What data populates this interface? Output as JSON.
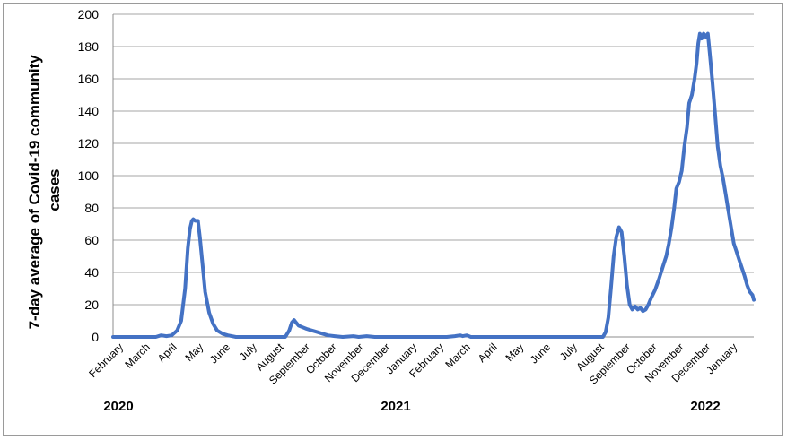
{
  "chart_data": {
    "type": "line",
    "title": "",
    "ylabel_lines": [
      "7-day average of Covid-19 community",
      "cases"
    ],
    "ylim": [
      0,
      200
    ],
    "yticks": [
      0,
      20,
      40,
      60,
      80,
      100,
      120,
      140,
      160,
      180,
      200
    ],
    "grid": true,
    "legend": "none",
    "line_color": "#4472c4",
    "month_labels": [
      "February",
      "March",
      "April",
      "May",
      "June",
      "July",
      "August",
      "September",
      "October",
      "November",
      "December",
      "January",
      "February",
      "March",
      "April",
      "May",
      "June",
      "July",
      "August",
      "September",
      "October",
      "November",
      "December",
      "January"
    ],
    "years": [
      "2020",
      "2021",
      "2022"
    ],
    "x_start_month": "2020-02",
    "points": [
      [
        0,
        0
      ],
      [
        1.6,
        0
      ],
      [
        1.8,
        1
      ],
      [
        2.0,
        0.5
      ],
      [
        2.2,
        1
      ],
      [
        2.4,
        4
      ],
      [
        2.55,
        10
      ],
      [
        2.7,
        30
      ],
      [
        2.8,
        55
      ],
      [
        2.88,
        67
      ],
      [
        2.95,
        72
      ],
      [
        3.0,
        73
      ],
      [
        3.08,
        72
      ],
      [
        3.18,
        72
      ],
      [
        3.25,
        62
      ],
      [
        3.35,
        45
      ],
      [
        3.45,
        28
      ],
      [
        3.6,
        15
      ],
      [
        3.75,
        8
      ],
      [
        3.9,
        4
      ],
      [
        4.1,
        2
      ],
      [
        4.3,
        1
      ],
      [
        4.6,
        0
      ],
      [
        6.0,
        0
      ],
      [
        6.45,
        0
      ],
      [
        6.6,
        4
      ],
      [
        6.7,
        9
      ],
      [
        6.78,
        10.5
      ],
      [
        6.85,
        9
      ],
      [
        6.95,
        7
      ],
      [
        7.1,
        6
      ],
      [
        7.25,
        5
      ],
      [
        7.45,
        4
      ],
      [
        7.65,
        3
      ],
      [
        7.85,
        2
      ],
      [
        8.05,
        1
      ],
      [
        8.3,
        0.5
      ],
      [
        8.6,
        0
      ],
      [
        9.0,
        0.5
      ],
      [
        9.2,
        0
      ],
      [
        9.5,
        0.5
      ],
      [
        9.8,
        0
      ],
      [
        10.5,
        0
      ],
      [
        11.5,
        0
      ],
      [
        12.5,
        0
      ],
      [
        12.8,
        0.5
      ],
      [
        13.0,
        1
      ],
      [
        13.1,
        0.5
      ],
      [
        13.25,
        1
      ],
      [
        13.4,
        0
      ],
      [
        18.0,
        0
      ],
      [
        18.35,
        0
      ],
      [
        18.45,
        3
      ],
      [
        18.55,
        12
      ],
      [
        18.65,
        30
      ],
      [
        18.75,
        50
      ],
      [
        18.85,
        62
      ],
      [
        18.95,
        68
      ],
      [
        19.05,
        65
      ],
      [
        19.15,
        50
      ],
      [
        19.25,
        32
      ],
      [
        19.35,
        20
      ],
      [
        19.45,
        17
      ],
      [
        19.55,
        19
      ],
      [
        19.65,
        17
      ],
      [
        19.75,
        18
      ],
      [
        19.85,
        16
      ],
      [
        19.95,
        17
      ],
      [
        20.05,
        20
      ],
      [
        20.15,
        24
      ],
      [
        20.3,
        29
      ],
      [
        20.45,
        36
      ],
      [
        20.6,
        44
      ],
      [
        20.72,
        50
      ],
      [
        20.82,
        58
      ],
      [
        20.92,
        68
      ],
      [
        21.02,
        80
      ],
      [
        21.1,
        92
      ],
      [
        21.2,
        96
      ],
      [
        21.3,
        103
      ],
      [
        21.4,
        118
      ],
      [
        21.5,
        130
      ],
      [
        21.58,
        145
      ],
      [
        21.68,
        150
      ],
      [
        21.78,
        160
      ],
      [
        21.86,
        170
      ],
      [
        21.92,
        182
      ],
      [
        21.98,
        188
      ],
      [
        22.05,
        185
      ],
      [
        22.12,
        188
      ],
      [
        22.2,
        186
      ],
      [
        22.28,
        188
      ],
      [
        22.35,
        176
      ],
      [
        22.45,
        158
      ],
      [
        22.55,
        138
      ],
      [
        22.65,
        118
      ],
      [
        22.75,
        106
      ],
      [
        22.85,
        98
      ],
      [
        22.95,
        88
      ],
      [
        23.05,
        78
      ],
      [
        23.15,
        68
      ],
      [
        23.25,
        58
      ],
      [
        23.35,
        53
      ],
      [
        23.45,
        48
      ],
      [
        23.55,
        43
      ],
      [
        23.65,
        38
      ],
      [
        23.75,
        32
      ],
      [
        23.85,
        28
      ],
      [
        23.95,
        26
      ],
      [
        24.0,
        23
      ]
    ]
  }
}
